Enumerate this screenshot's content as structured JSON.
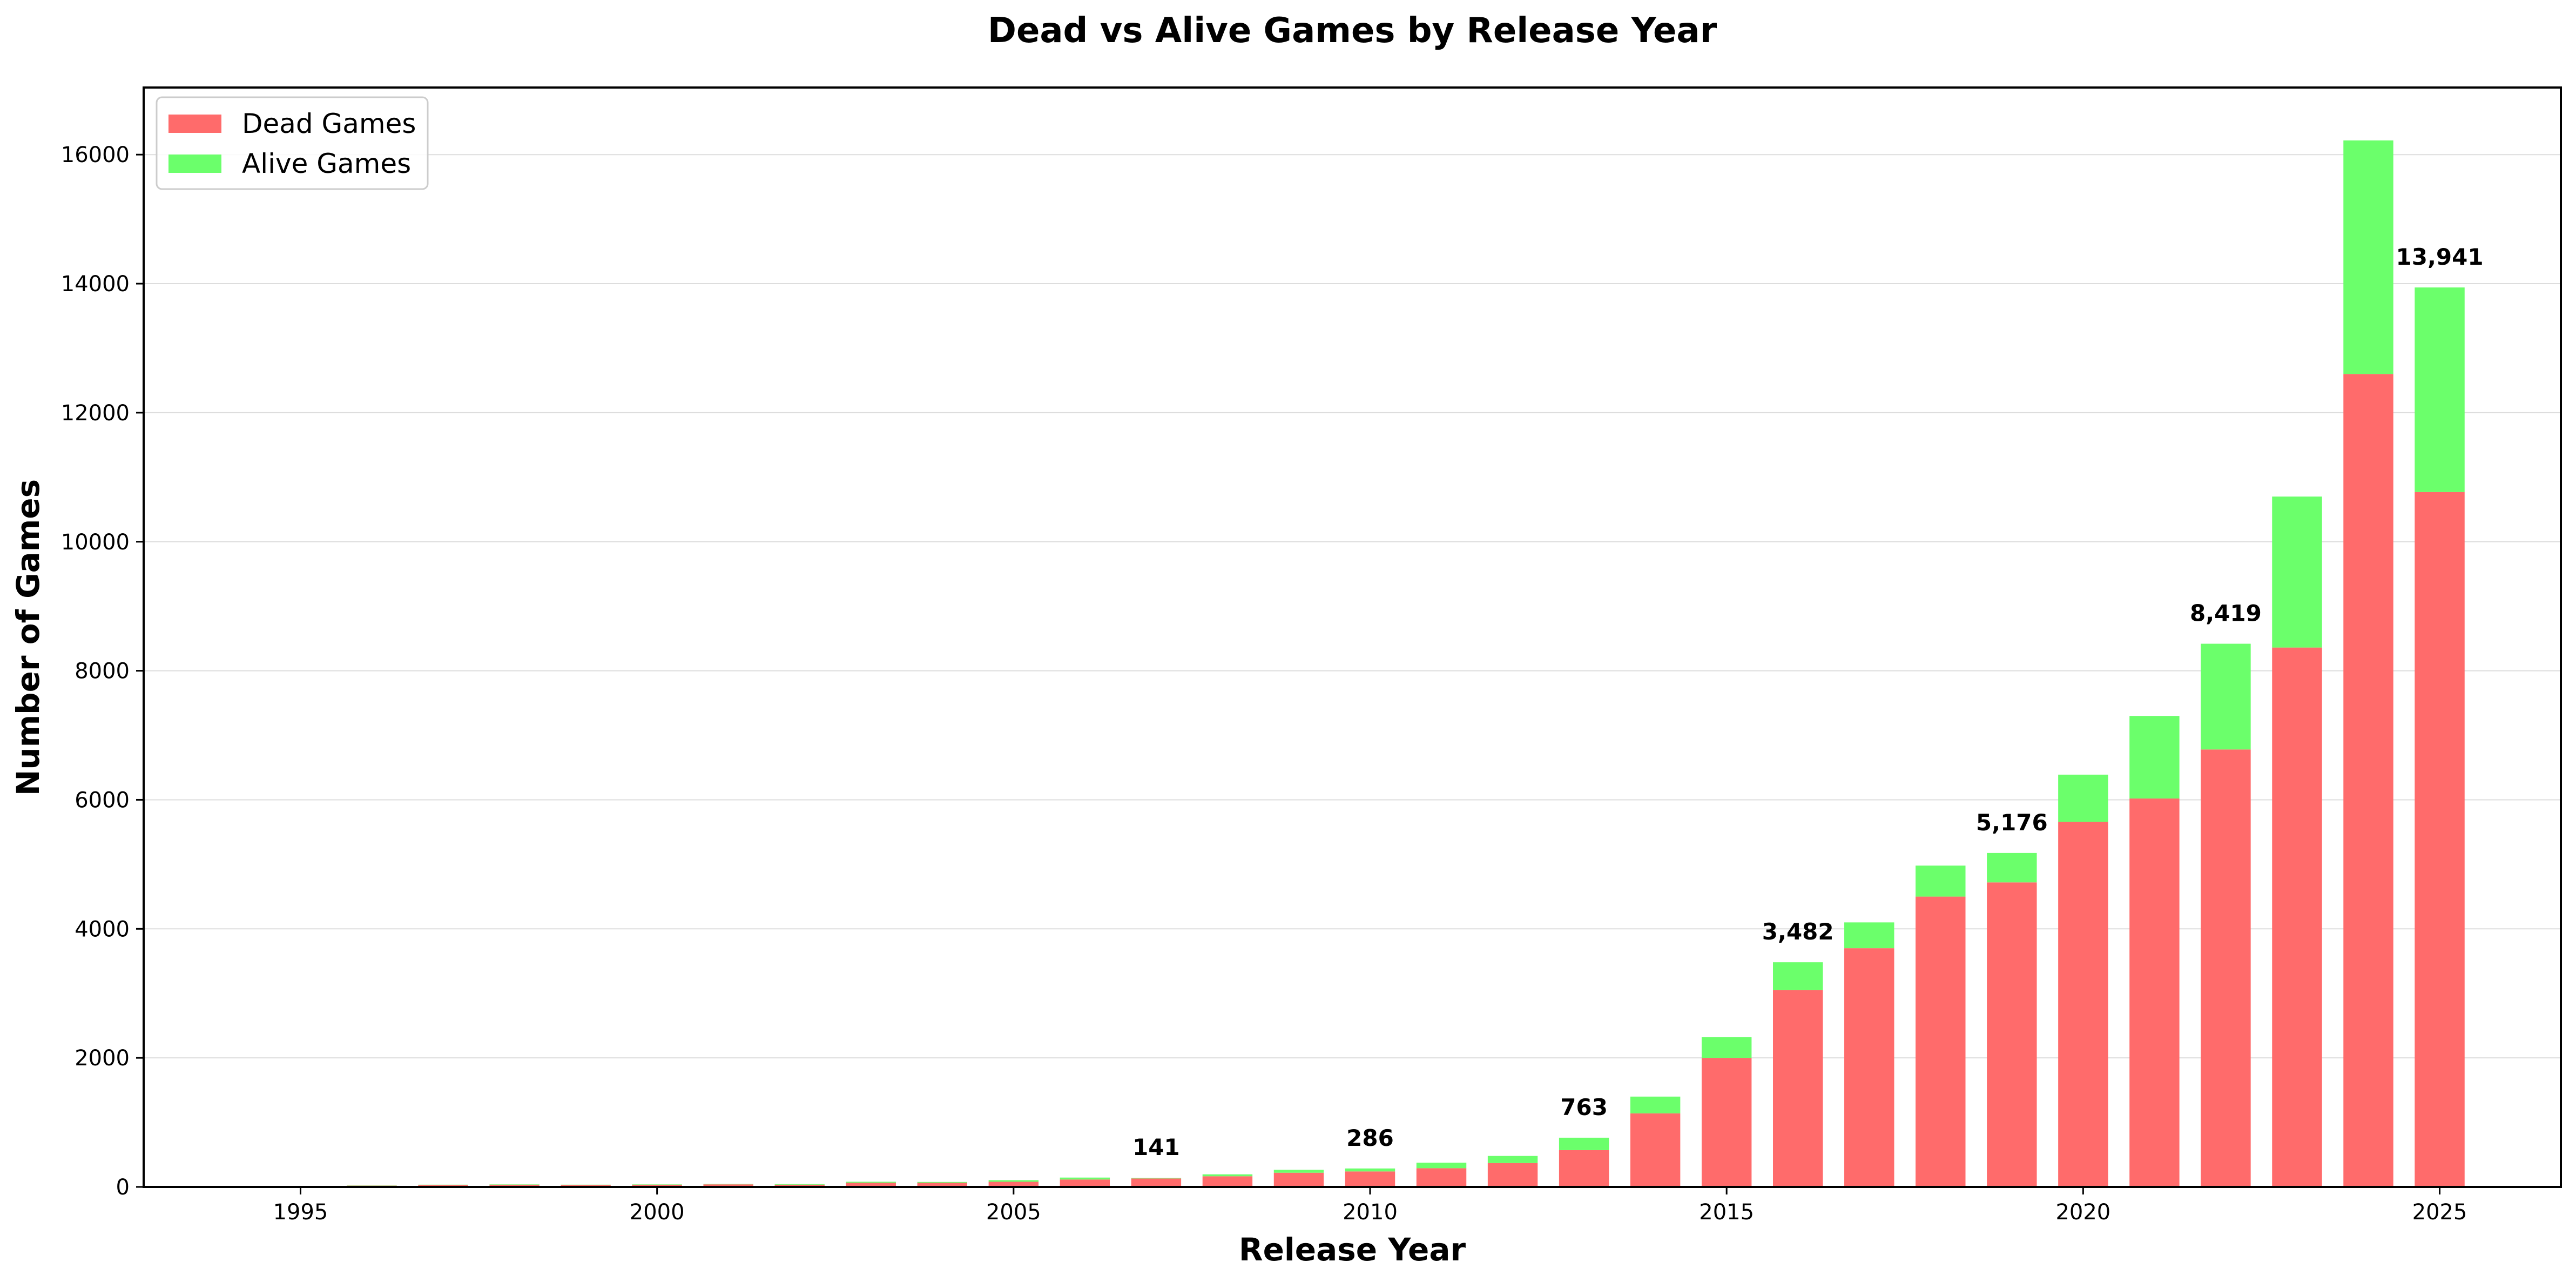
{
  "chart_data": {
    "type": "bar",
    "stacked": true,
    "title": "Dead vs Alive Games by Release Year",
    "xlabel": "Release Year",
    "ylabel": "Number of Games",
    "xlim": [
      1992.8,
      2026.7
    ],
    "ylim": [
      0,
      17040
    ],
    "x_ticks": [
      1995,
      2000,
      2005,
      2010,
      2015,
      2020,
      2025
    ],
    "y_ticks": [
      0,
      2000,
      4000,
      6000,
      8000,
      10000,
      12000,
      14000,
      16000
    ],
    "grid": "horizontal",
    "legend_position": "top-left",
    "colors": {
      "dead": "#ff6b6b",
      "alive": "#6bff6b"
    },
    "categories": [
      1995,
      1996,
      1997,
      1998,
      1999,
      2000,
      2001,
      2002,
      2003,
      2004,
      2005,
      2006,
      2007,
      2008,
      2009,
      2010,
      2011,
      2012,
      2013,
      2014,
      2015,
      2016,
      2017,
      2018,
      2019,
      2020,
      2021,
      2022,
      2023,
      2024,
      2025
    ],
    "series": [
      {
        "name": "Dead Games",
        "key": "dead",
        "values": [
          5,
          20,
          30,
          35,
          30,
          35,
          40,
          35,
          65,
          65,
          80,
          115,
          131,
          165,
          220,
          240,
          290,
          370,
          570,
          1140,
          2000,
          3050,
          3700,
          4500,
          4720,
          5660,
          6020,
          6780,
          8360,
          12600,
          10770
        ]
      },
      {
        "name": "Alive Games",
        "key": "alive",
        "values": [
          1,
          3,
          5,
          5,
          5,
          5,
          5,
          8,
          15,
          12,
          25,
          30,
          10,
          30,
          45,
          46,
          85,
          110,
          193,
          260,
          320,
          432,
          400,
          480,
          456,
          730,
          1280,
          1639,
          2340,
          3620,
          3171
        ]
      }
    ],
    "annotations": [
      {
        "category": 2007,
        "text": "141"
      },
      {
        "category": 2010,
        "text": "286"
      },
      {
        "category": 2013,
        "text": "763"
      },
      {
        "category": 2016,
        "text": "3,482"
      },
      {
        "category": 2019,
        "text": "5,176"
      },
      {
        "category": 2022,
        "text": "8,419"
      },
      {
        "category": 2025,
        "text": "13,941"
      }
    ]
  }
}
